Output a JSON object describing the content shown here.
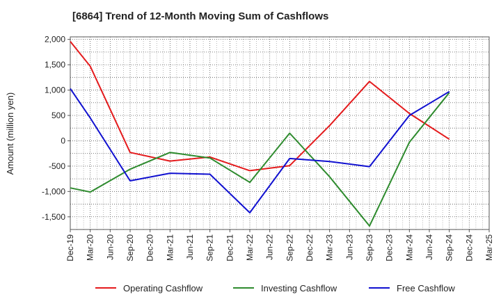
{
  "title": "[6864]  Trend of 12-Month Moving Sum of Cashflows",
  "chart_data": {
    "type": "line",
    "title": "[6864]  Trend of 12-Month Moving Sum of Cashflows",
    "xlabel": "",
    "ylabel": "Amount (million yen)",
    "categories": [
      "Dec-19",
      "Mar-20",
      "Jun-20",
      "Sep-20",
      "Dec-20",
      "Mar-21",
      "Jun-21",
      "Sep-21",
      "Dec-21",
      "Mar-22",
      "Jun-22",
      "Sep-22",
      "Dec-22",
      "Mar-23",
      "Jun-23",
      "Sep-23",
      "Dec-23",
      "Mar-24",
      "Jun-24",
      "Sep-24",
      "Dec-24",
      "Mar-25"
    ],
    "ylim": [
      -1750,
      2050
    ],
    "yticks": [
      2000,
      1500,
      1000,
      500,
      0,
      -500,
      -1000,
      -1500
    ],
    "ytick_labels": [
      "2,000",
      "1,500",
      "1,000",
      "500",
      "0",
      "-500",
      "-1,000",
      "-1,500"
    ],
    "grid": true,
    "legend_position": "bottom",
    "series": [
      {
        "name": "Operating Cashflow",
        "color": "#e41a1c",
        "points": [
          {
            "x": "Dec-19",
            "y": 1960
          },
          {
            "x": "Mar-20",
            "y": 1470
          },
          {
            "x": "Sep-20",
            "y": -230
          },
          {
            "x": "Mar-21",
            "y": -400
          },
          {
            "x": "Sep-21",
            "y": -320
          },
          {
            "x": "Mar-22",
            "y": -590
          },
          {
            "x": "Sep-22",
            "y": -490
          },
          {
            "x": "Mar-23",
            "y": 300
          },
          {
            "x": "Sep-23",
            "y": 1170
          },
          {
            "x": "Mar-24",
            "y": 540
          },
          {
            "x": "Sep-24",
            "y": 30
          }
        ]
      },
      {
        "name": "Investing Cashflow",
        "color": "#2e8b2e",
        "points": [
          {
            "x": "Dec-19",
            "y": -930
          },
          {
            "x": "Mar-20",
            "y": -1010
          },
          {
            "x": "Sep-20",
            "y": -560
          },
          {
            "x": "Mar-21",
            "y": -230
          },
          {
            "x": "Sep-21",
            "y": -340
          },
          {
            "x": "Mar-22",
            "y": -820
          },
          {
            "x": "Sep-22",
            "y": 150
          },
          {
            "x": "Mar-23",
            "y": -710
          },
          {
            "x": "Sep-23",
            "y": -1680
          },
          {
            "x": "Mar-24",
            "y": -30
          },
          {
            "x": "Sep-24",
            "y": 950
          }
        ]
      },
      {
        "name": "Free Cashflow",
        "color": "#1010d0",
        "points": [
          {
            "x": "Dec-19",
            "y": 1030
          },
          {
            "x": "Mar-20",
            "y": 450
          },
          {
            "x": "Sep-20",
            "y": -790
          },
          {
            "x": "Mar-21",
            "y": -640
          },
          {
            "x": "Sep-21",
            "y": -660
          },
          {
            "x": "Mar-22",
            "y": -1420
          },
          {
            "x": "Sep-22",
            "y": -350
          },
          {
            "x": "Mar-23",
            "y": -410
          },
          {
            "x": "Sep-23",
            "y": -510
          },
          {
            "x": "Mar-24",
            "y": 500
          },
          {
            "x": "Sep-24",
            "y": 970
          }
        ]
      }
    ]
  }
}
